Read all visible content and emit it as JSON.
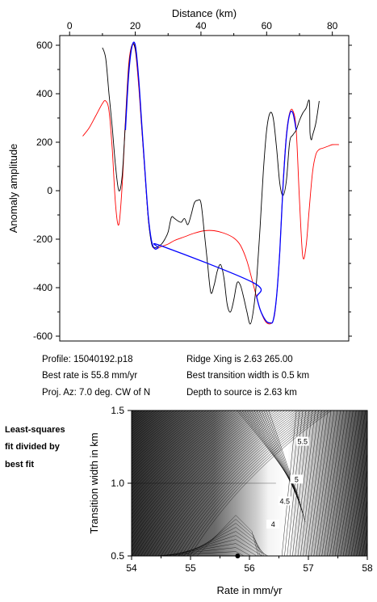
{
  "chart_data": [
    {
      "type": "line",
      "top_xlabel": "Distance (km)",
      "ylabel": "Anomaly amplitude",
      "xlim": [
        -3,
        85
      ],
      "ylim": [
        -620,
        640
      ],
      "xticks": [
        0,
        20,
        40,
        60,
        80
      ],
      "xtick_labels": [
        "0",
        "20",
        "40",
        "60",
        "80"
      ],
      "yticks": [
        600,
        400,
        200,
        0,
        -200,
        -400,
        -600
      ],
      "ytick_labels": [
        "600",
        "400",
        "200",
        "0",
        "-200",
        "-400",
        "-600"
      ],
      "series": [
        {
          "color": "#000000",
          "x": [
            10,
            11,
            12,
            13,
            14,
            15,
            16,
            17,
            18,
            19,
            20,
            21,
            22,
            23,
            24,
            25,
            26,
            27,
            28,
            29,
            30,
            31,
            32,
            33,
            34,
            35,
            36,
            37,
            38,
            39,
            40,
            41,
            42,
            43,
            44,
            45,
            46,
            47,
            48,
            49,
            50,
            51,
            52,
            53,
            54,
            55,
            56,
            57,
            58,
            59,
            60,
            61,
            62,
            63,
            64,
            65,
            66,
            67,
            68,
            69,
            70,
            71,
            72,
            73,
            73.2,
            73.6,
            74,
            75,
            76
          ],
          "y": [
            590,
            545,
            400,
            260,
            100,
            0,
            60,
            280,
            500,
            600,
            585,
            460,
            260,
            70,
            -120,
            -220,
            -235,
            -230,
            -220,
            -200,
            -170,
            -110,
            -115,
            -125,
            -130,
            -115,
            -140,
            -100,
            -50,
            -40,
            -50,
            -170,
            -300,
            -420,
            -390,
            -330,
            -305,
            -360,
            -470,
            -500,
            -450,
            -380,
            -390,
            -440,
            -500,
            -550,
            -490,
            -360,
            -150,
            80,
            250,
            320,
            300,
            180,
            30,
            -20,
            40,
            200,
            230,
            250,
            290,
            320,
            340,
            370,
            240,
            210,
            230,
            280,
            370
          ]
        },
        {
          "color": "#ff0000",
          "x": [
            4,
            6,
            8,
            10,
            11,
            12,
            13,
            14,
            15,
            16,
            17,
            18,
            19,
            20,
            21,
            22,
            23,
            24,
            25,
            26,
            28,
            30,
            32,
            35,
            38,
            41,
            44,
            47,
            50,
            52,
            54,
            56,
            58,
            60,
            62,
            63,
            64,
            65,
            66,
            67,
            68,
            69,
            70,
            71,
            72,
            73,
            74,
            75,
            76,
            77,
            78,
            79,
            80,
            82
          ],
          "y": [
            225,
            260,
            310,
            360,
            370,
            330,
            170,
            -60,
            -140,
            20,
            290,
            520,
            600,
            580,
            440,
            250,
            60,
            -120,
            -215,
            -240,
            -230,
            -220,
            -205,
            -190,
            -175,
            -165,
            -165,
            -175,
            -195,
            -225,
            -290,
            -390,
            -490,
            -545,
            -535,
            -440,
            -250,
            30,
            230,
            320,
            330,
            250,
            -40,
            -270,
            -230,
            -70,
            80,
            150,
            170,
            175,
            180,
            185,
            190,
            190
          ]
        },
        {
          "color": "#0000ff",
          "x": [
            17,
            18,
            19,
            20,
            21,
            22,
            23,
            24,
            25,
            26,
            27,
            28,
            56,
            57,
            58,
            59,
            60,
            61,
            62,
            63,
            64,
            65,
            66,
            67,
            68,
            69
          ],
          "y": [
            250,
            480,
            595,
            600,
            470,
            270,
            70,
            -110,
            -210,
            -240,
            -235,
            -228,
            -380,
            -440,
            -490,
            -520,
            -540,
            -545,
            -535,
            -440,
            -250,
            20,
            220,
            315,
            320,
            250
          ]
        }
      ]
    },
    {
      "type": "heatmap",
      "xlabel": "Rate in mm/yr",
      "ylabel": "Transition width in km",
      "xlim": [
        54,
        58
      ],
      "ylim": [
        0.5,
        1.5
      ],
      "xticks": [
        54,
        55,
        56,
        57,
        58
      ],
      "xtick_labels": [
        "54",
        "55",
        "56",
        "57",
        "58"
      ],
      "yticks": [
        0.5,
        1.0,
        1.5
      ],
      "ytick_labels": [
        "0.5",
        "1.0",
        "1.5"
      ],
      "contour_labels": [
        {
          "text": "5.5",
          "x": 56.9,
          "y": 1.28
        },
        {
          "text": "5",
          "x": 56.8,
          "y": 1.02
        },
        {
          "text": "4.5",
          "x": 56.6,
          "y": 0.87
        },
        {
          "text": "4",
          "x": 56.4,
          "y": 0.71
        }
      ],
      "best_fit_point": {
        "x": 55.8,
        "y": 0.5
      }
    }
  ],
  "info": {
    "profile": "Profile: 15040192.p18",
    "best_rate": "Best rate is 55.8 mm/yr",
    "proj_az": "Proj. Az: 7.0 deg. CW of N",
    "ridge_xing": "Ridge Xing is 2.63 265.00",
    "best_transition": "Best transition width is 0.5 km",
    "depth_source": "Depth to source is   2.63 km"
  },
  "side_label": [
    "Least-squares",
    "fit divided by",
    "best fit"
  ]
}
